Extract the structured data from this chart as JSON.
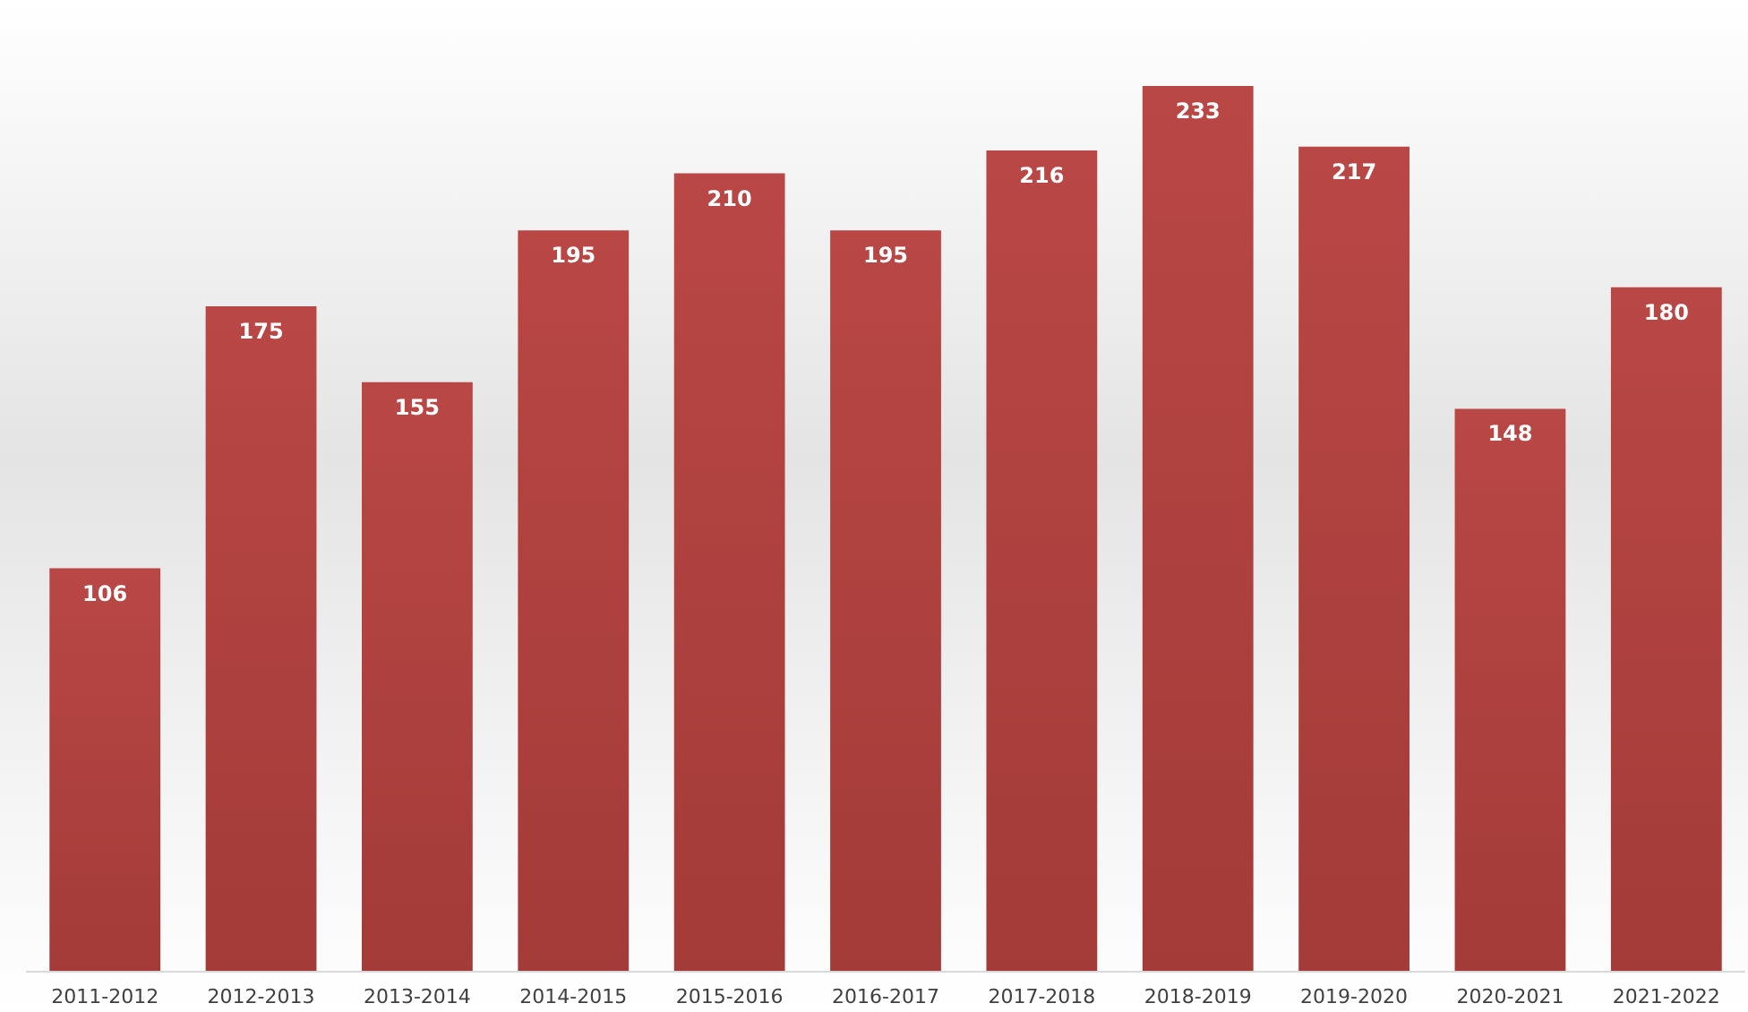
{
  "chart_data": {
    "type": "bar",
    "categories": [
      "2011-2012",
      "2012-2013",
      "2013-2014",
      "2014-2015",
      "2015-2016",
      "2016-2017",
      "2017-2018",
      "2018-2019",
      "2019-2020",
      "2020-2021",
      "2021-2022"
    ],
    "values": [
      106,
      175,
      155,
      195,
      210,
      195,
      216,
      233,
      217,
      148,
      180
    ],
    "color": "#b94745",
    "data_labels": true
  }
}
